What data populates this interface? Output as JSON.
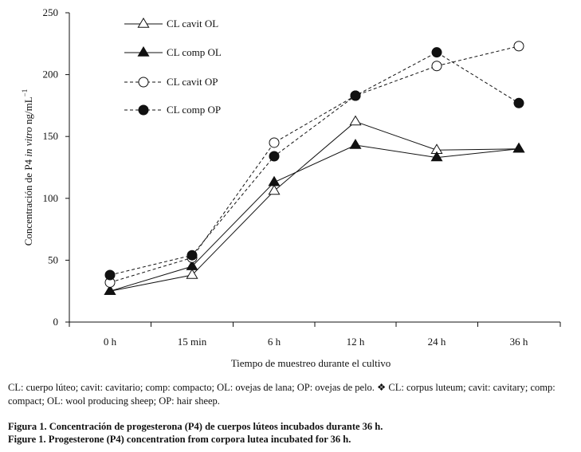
{
  "chart_data": {
    "type": "line",
    "categories": [
      "0 h",
      "15 min",
      "6 h",
      "12 h",
      "24 h",
      "36 h"
    ],
    "ylim": [
      0,
      250
    ],
    "yticks": [
      0,
      50,
      100,
      150,
      200,
      250
    ],
    "ylabel_pre": "Concentración de P4 ",
    "ylabel_italic": "in vitro",
    "ylabel_post": " ng/mL",
    "ylabel_sup": "−1",
    "xlabel": "Tiempo de muestreo durante el cultivo",
    "series": [
      {
        "name": "CL cavit OL",
        "marker": "open-triangle",
        "dash": "solid",
        "values": [
          25,
          38,
          106,
          162,
          139,
          140
        ]
      },
      {
        "name": "CL comp OL",
        "marker": "filled-triangle",
        "dash": "solid",
        "values": [
          25,
          45,
          113,
          143,
          133,
          140
        ]
      },
      {
        "name": "CL cavit OP",
        "marker": "open-circle",
        "dash": "dashed",
        "values": [
          32,
          52,
          145,
          183,
          207,
          223
        ]
      },
      {
        "name": "CL comp OP",
        "marker": "filled-circle",
        "dash": "dashed",
        "values": [
          38,
          54,
          134,
          183,
          218,
          177
        ]
      }
    ]
  },
  "notes": {
    "text": "CL: cuerpo lúteo; cavit: cavitario; comp: compacto; OL: ovejas de lana; OP: ovejas de pelo. ❖ CL: corpus luteum; cavit: cavitary; comp: compact; OL: wool producing sheep; OP: hair sheep."
  },
  "captions": {
    "es": "Figura 1. Concentración de progesterona (P4) de cuerpos lúteos incubados durante 36 h.",
    "en": "Figure 1. Progesterone (P4) concentration from corpora lutea incubated for 36 h."
  },
  "colors": {
    "ink": "#111111",
    "background": "#ffffff"
  }
}
